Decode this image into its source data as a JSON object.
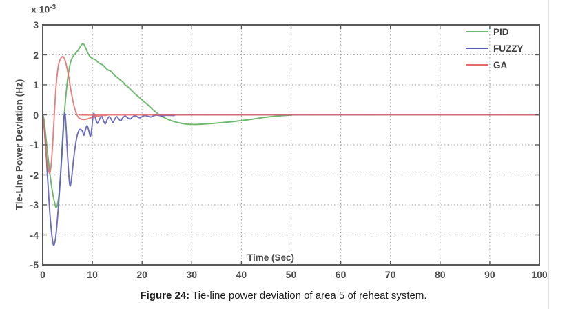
{
  "caption": {
    "prefix": "Figure 24:",
    "text": " Tie-line power deviation of area 5 of reheat system."
  },
  "chart_data": {
    "type": "line",
    "title": "",
    "xlabel": "Time (Sec)",
    "ylabel": "Tie-Line Power Deviation (Hz)",
    "y_multiplier": {
      "base": "x 10",
      "exponent": "-3"
    },
    "xlim": [
      0,
      100
    ],
    "ylim": [
      -5,
      3
    ],
    "xticks": [
      0,
      10,
      20,
      30,
      40,
      50,
      60,
      70,
      80,
      90,
      100
    ],
    "yticks": [
      3,
      2,
      1,
      0,
      -1,
      -2,
      -3,
      -4,
      -5
    ],
    "grid": true,
    "axis_color": "#5a5a5a",
    "grid_color": "#9c9c9c",
    "tick_label_color": "#4c4c4c",
    "legend": {
      "position": "upper-right-inside",
      "entries": [
        "PID",
        "FUZZY",
        "GA"
      ]
    },
    "series": [
      {
        "name": "PID",
        "color": "#6cb86c",
        "opacity": 1,
        "points": [
          [
            0,
            0
          ],
          [
            0.3,
            -0.2
          ],
          [
            0.8,
            -1.0
          ],
          [
            1.4,
            -1.9
          ],
          [
            2.0,
            -2.6
          ],
          [
            2.5,
            -3.0
          ],
          [
            2.8,
            -3.08
          ],
          [
            3.2,
            -2.75
          ],
          [
            3.6,
            -2.0
          ],
          [
            4.0,
            -1.0
          ],
          [
            4.35,
            0
          ],
          [
            4.7,
            0.7
          ],
          [
            5.1,
            1.3
          ],
          [
            5.6,
            1.75
          ],
          [
            6.1,
            1.95
          ],
          [
            6.6,
            2.05
          ],
          [
            7.1,
            2.15
          ],
          [
            7.6,
            2.28
          ],
          [
            8.1,
            2.38
          ],
          [
            8.45,
            2.3
          ],
          [
            8.8,
            2.18
          ],
          [
            9.2,
            2.02
          ],
          [
            9.6,
            1.93
          ],
          [
            10.1,
            1.87
          ],
          [
            10.6,
            1.84
          ],
          [
            11.1,
            1.76
          ],
          [
            11.6,
            1.7
          ],
          [
            12.1,
            1.66
          ],
          [
            12.6,
            1.58
          ],
          [
            13.1,
            1.5
          ],
          [
            13.6,
            1.47
          ],
          [
            14.1,
            1.38
          ],
          [
            14.6,
            1.3
          ],
          [
            15.1,
            1.24
          ],
          [
            15.6,
            1.16
          ],
          [
            16.1,
            1.1
          ],
          [
            16.6,
            1.0
          ],
          [
            17.1,
            0.94
          ],
          [
            17.6,
            0.86
          ],
          [
            18.1,
            0.78
          ],
          [
            18.6,
            0.7
          ],
          [
            19.1,
            0.63
          ],
          [
            19.6,
            0.56
          ],
          [
            20.1,
            0.48
          ],
          [
            21,
            0.36
          ],
          [
            22,
            0.2
          ],
          [
            23,
            0.06
          ],
          [
            23.7,
            -0.02
          ],
          [
            24.8,
            -0.12
          ],
          [
            26,
            -0.2
          ],
          [
            27.5,
            -0.27
          ],
          [
            29,
            -0.31
          ],
          [
            30.5,
            -0.32
          ],
          [
            32,
            -0.31
          ],
          [
            34,
            -0.29
          ],
          [
            36,
            -0.26
          ],
          [
            38,
            -0.23
          ],
          [
            40,
            -0.19
          ],
          [
            42,
            -0.15
          ],
          [
            44,
            -0.1
          ],
          [
            46,
            -0.06
          ],
          [
            48,
            -0.03
          ],
          [
            50,
            -0.01
          ],
          [
            52,
            0
          ],
          [
            67,
            0
          ]
        ]
      },
      {
        "name": "FUZZY",
        "color": "#5d5dbb",
        "opacity": 0.9,
        "points": [
          [
            0,
            0
          ],
          [
            0.4,
            -0.6
          ],
          [
            0.8,
            -1.6
          ],
          [
            1.2,
            -2.7
          ],
          [
            1.6,
            -3.6
          ],
          [
            1.95,
            -4.15
          ],
          [
            2.25,
            -4.35
          ],
          [
            2.6,
            -4.1
          ],
          [
            3.0,
            -3.4
          ],
          [
            3.4,
            -2.5
          ],
          [
            3.8,
            -1.4
          ],
          [
            4.15,
            -0.4
          ],
          [
            4.4,
            0.05
          ],
          [
            4.65,
            -0.25
          ],
          [
            4.95,
            -1.2
          ],
          [
            5.3,
            -2.1
          ],
          [
            5.55,
            -2.37
          ],
          [
            5.85,
            -2.05
          ],
          [
            6.2,
            -1.5
          ],
          [
            6.6,
            -1.0
          ],
          [
            7.0,
            -0.65
          ],
          [
            7.5,
            -0.48
          ],
          [
            8.0,
            -0.55
          ],
          [
            8.3,
            -0.68
          ],
          [
            8.6,
            -0.5
          ],
          [
            8.95,
            -0.36
          ],
          [
            9.3,
            -0.55
          ],
          [
            9.6,
            -0.72
          ],
          [
            9.85,
            -0.5
          ],
          [
            10.1,
            -0.1
          ],
          [
            10.3,
            0.05
          ],
          [
            10.6,
            -0.1
          ],
          [
            11.0,
            -0.28
          ],
          [
            11.4,
            -0.16
          ],
          [
            11.85,
            -0.05
          ],
          [
            12.2,
            -0.18
          ],
          [
            12.6,
            -0.3
          ],
          [
            13.0,
            -0.15
          ],
          [
            13.4,
            -0.06
          ],
          [
            13.8,
            -0.15
          ],
          [
            14.15,
            -0.25
          ],
          [
            14.5,
            -0.15
          ],
          [
            14.9,
            -0.06
          ],
          [
            15.3,
            -0.13
          ],
          [
            15.7,
            -0.2
          ],
          [
            16.1,
            -0.1
          ],
          [
            16.6,
            -0.04
          ],
          [
            17.1,
            -0.1
          ],
          [
            17.6,
            -0.14
          ],
          [
            18.1,
            -0.07
          ],
          [
            18.6,
            -0.03
          ],
          [
            19.1,
            -0.07
          ],
          [
            19.6,
            -0.1
          ],
          [
            20.1,
            -0.05
          ],
          [
            20.6,
            -0.02
          ],
          [
            21.2,
            -0.05
          ],
          [
            21.8,
            -0.07
          ],
          [
            22.4,
            -0.03
          ],
          [
            23,
            -0.01
          ],
          [
            24,
            -0.04
          ],
          [
            25,
            -0.01
          ],
          [
            26.5,
            -0.02
          ],
          [
            28,
            0
          ],
          [
            100,
            0
          ]
        ]
      },
      {
        "name": "GA",
        "color": "#e56a6a",
        "opacity": 0.85,
        "points": [
          [
            0,
            0
          ],
          [
            0.25,
            -0.35
          ],
          [
            0.55,
            -1.0
          ],
          [
            0.9,
            -1.6
          ],
          [
            1.2,
            -1.88
          ],
          [
            1.45,
            -1.93
          ],
          [
            1.7,
            -1.65
          ],
          [
            2.0,
            -1.0
          ],
          [
            2.3,
            -0.1
          ],
          [
            2.6,
            0.75
          ],
          [
            2.95,
            1.4
          ],
          [
            3.3,
            1.75
          ],
          [
            3.7,
            1.9
          ],
          [
            4.1,
            1.94
          ],
          [
            4.5,
            1.82
          ],
          [
            4.9,
            1.55
          ],
          [
            5.3,
            1.2
          ],
          [
            5.7,
            0.8
          ],
          [
            6.1,
            0.45
          ],
          [
            6.5,
            0.18
          ],
          [
            6.9,
            0.0
          ],
          [
            7.3,
            -0.1
          ],
          [
            7.9,
            -0.15
          ],
          [
            8.6,
            -0.15
          ],
          [
            9.3,
            -0.12
          ],
          [
            10,
            -0.08
          ],
          [
            11,
            -0.04
          ],
          [
            12,
            -0.02
          ],
          [
            13,
            -0.01
          ],
          [
            14,
            0
          ],
          [
            100,
            0
          ]
        ]
      }
    ]
  }
}
